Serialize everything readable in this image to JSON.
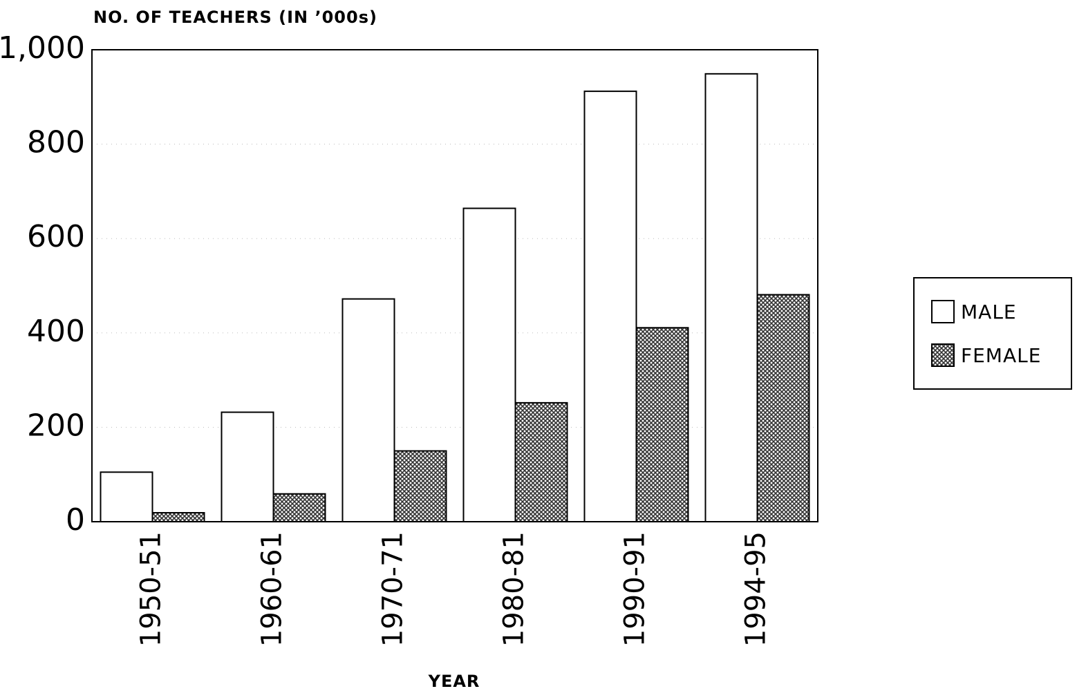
{
  "chart_data": {
    "type": "bar",
    "y_axis_label": "NO. OF TEACHERS (IN ’000s)",
    "x_axis_label": "YEAR",
    "categories": [
      "1950-51",
      "1960-61",
      "1970-71",
      "1980-81",
      "1990-91",
      "1994-95"
    ],
    "series": [
      {
        "name": "MALE",
        "color": "#ffffff",
        "pattern": false,
        "values": [
          105,
          232,
          472,
          664,
          912,
          949
        ]
      },
      {
        "name": "FEMALE",
        "color": "#333333",
        "pattern": true,
        "values": [
          19,
          59,
          150,
          252,
          411,
          481
        ]
      }
    ],
    "ylim": [
      0,
      1000
    ],
    "yticks": [
      0,
      200,
      400,
      600,
      800,
      {
        "value": 1000,
        "label": "1,000"
      }
    ],
    "grid": true,
    "legend": "right"
  }
}
